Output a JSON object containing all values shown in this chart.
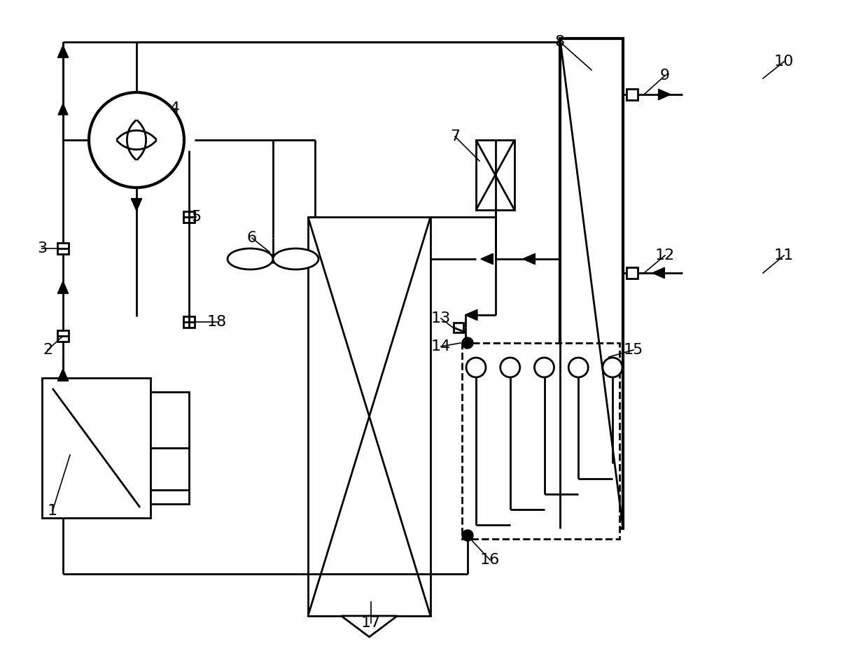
{
  "background": "#ffffff",
  "line_color": "#000000",
  "lw": 2.0,
  "fig_width": 12.4,
  "fig_height": 9.33,
  "dpi": 100
}
